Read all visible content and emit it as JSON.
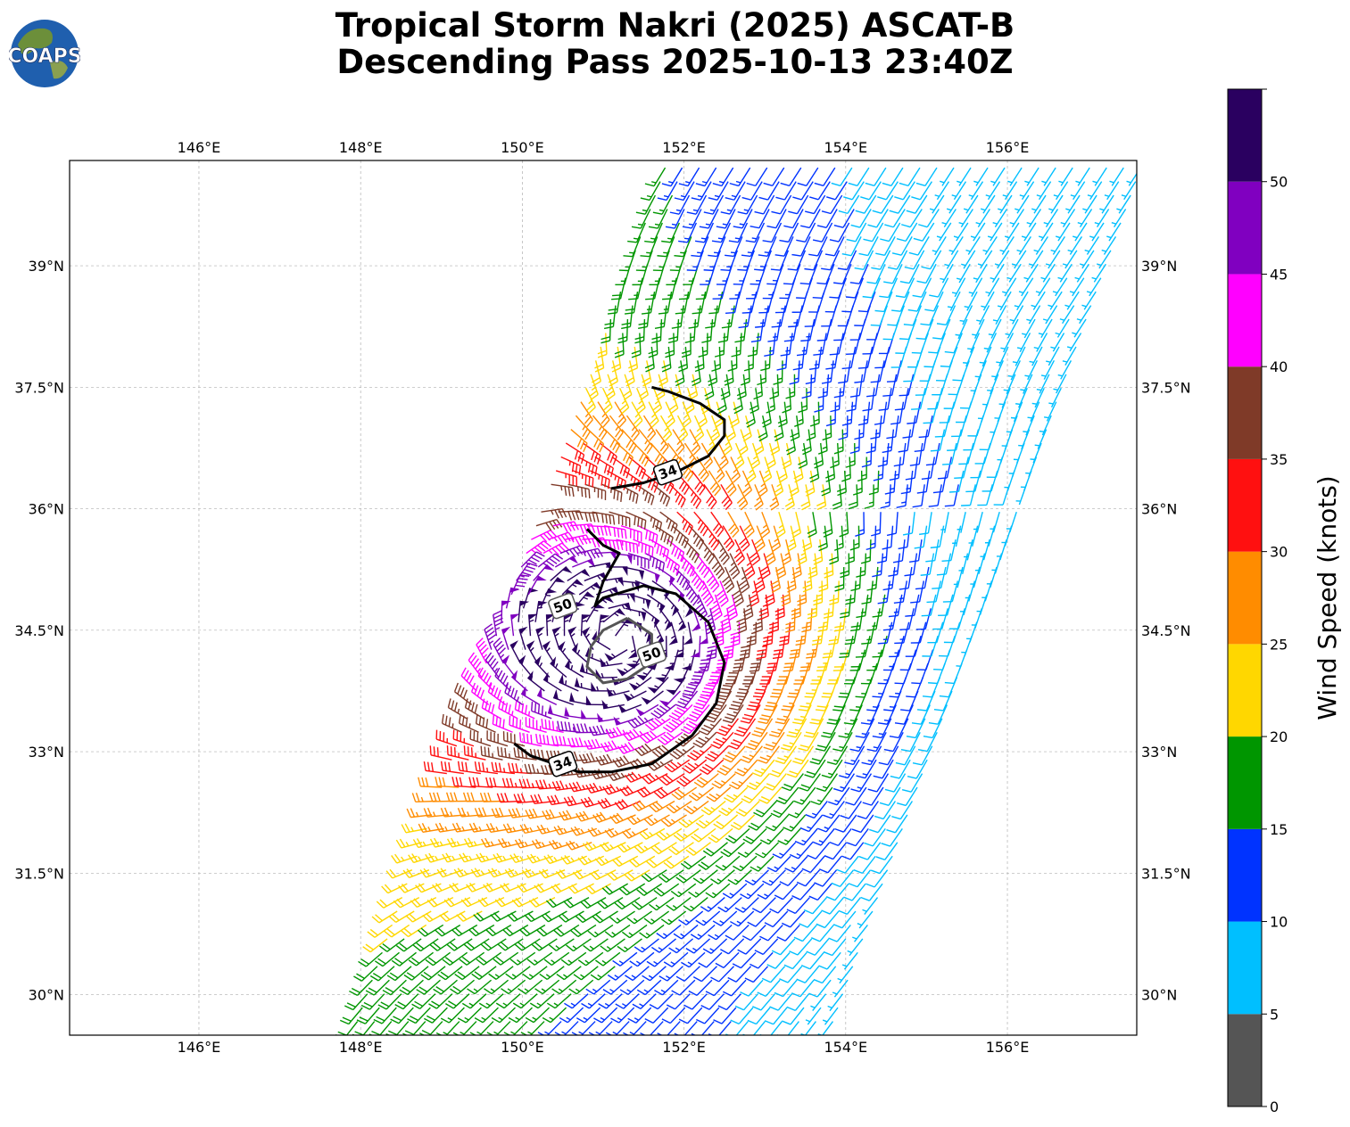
{
  "title_line1": "Tropical Storm Nakri (2025) ASCAT-B",
  "title_line2": "Descending Pass 2025-10-13 23:40Z",
  "logo_text": "COAPS",
  "colors": {
    "bins": [
      "#555555",
      "#00bfff",
      "#0033ff",
      "#009600",
      "#ffd700",
      "#ff8c00",
      "#ff1010",
      "#7f3a28",
      "#ff00ff",
      "#8000c0",
      "#2a0060"
    ],
    "contour34": "#000000",
    "contour50": "#555555",
    "grid": "#b0b0b0"
  },
  "chart_data": {
    "type": "wind-barb-map",
    "xlim": [
      144.4,
      157.6
    ],
    "ylim": [
      29.5,
      40.3
    ],
    "lon_ticks": [
      146,
      148,
      150,
      152,
      154,
      156
    ],
    "lon_labels": [
      "146°E",
      "148°E",
      "150°E",
      "152°E",
      "154°E",
      "156°E"
    ],
    "lat_ticks": [
      30,
      31.5,
      33,
      34.5,
      36,
      37.5,
      39
    ],
    "lat_labels": [
      "30°N",
      "31.5°N",
      "33°N",
      "34.5°N",
      "36°N",
      "37.5°N",
      "39°N"
    ],
    "storm_center": [
      151.2,
      34.4
    ],
    "swath": {
      "south_corners": [
        [
          147.9,
          29.5
        ],
        [
          153.9,
          29.5
        ]
      ],
      "north_corners": [
        [
          151.8,
          40.3
        ],
        [
          157.7,
          40.3
        ]
      ],
      "seam_latitude": 36.1
    },
    "colorbar": {
      "label": "Wind Speed (knots)",
      "bounds": [
        0,
        5,
        10,
        15,
        20,
        25,
        30,
        35,
        40,
        45,
        50,
        55
      ],
      "tick_values": [
        0,
        5,
        10,
        15,
        20,
        25,
        30,
        35,
        40,
        45,
        50
      ],
      "tick_labels": [
        "0",
        "5",
        "10",
        "15",
        "20",
        "25",
        "30",
        "35",
        "40",
        "45",
        "50"
      ]
    },
    "contours": [
      {
        "level": 34,
        "label": "34",
        "labels": [
          [
            151.8,
            36.45
          ],
          [
            150.5,
            32.85
          ]
        ],
        "paths": [
          [
            [
              151.1,
              36.25
            ],
            [
              151.5,
              36.32
            ],
            [
              151.9,
              36.45
            ],
            [
              152.3,
              36.65
            ],
            [
              152.5,
              36.9
            ],
            [
              152.5,
              37.1
            ],
            [
              152.2,
              37.3
            ],
            [
              151.8,
              37.45
            ],
            [
              151.6,
              37.5
            ]
          ],
          [
            [
              150.8,
              35.75
            ],
            [
              151.0,
              35.55
            ],
            [
              151.2,
              35.45
            ],
            [
              151.0,
              35.1
            ],
            [
              150.9,
              34.8
            ],
            [
              151.0,
              34.9
            ],
            [
              151.5,
              35.05
            ],
            [
              151.9,
              34.95
            ],
            [
              152.3,
              34.6
            ],
            [
              152.5,
              34.1
            ],
            [
              152.4,
              33.6
            ],
            [
              152.1,
              33.2
            ],
            [
              151.6,
              32.85
            ],
            [
              151.1,
              32.75
            ],
            [
              150.7,
              32.75
            ],
            [
              150.4,
              32.85
            ],
            [
              150.1,
              32.95
            ],
            [
              149.9,
              33.1
            ]
          ]
        ]
      },
      {
        "level": 50,
        "label": "50",
        "labels": [
          [
            151.6,
            34.2
          ],
          [
            150.5,
            34.8
          ]
        ],
        "paths": [
          [
            [
              151.3,
              34.65
            ],
            [
              151.0,
              34.5
            ],
            [
              150.85,
              34.3
            ],
            [
              150.8,
              34.05
            ],
            [
              151.0,
              33.85
            ],
            [
              151.3,
              33.9
            ],
            [
              151.6,
              34.1
            ],
            [
              151.6,
              34.45
            ],
            [
              151.3,
              34.65
            ]
          ]
        ]
      }
    ]
  }
}
